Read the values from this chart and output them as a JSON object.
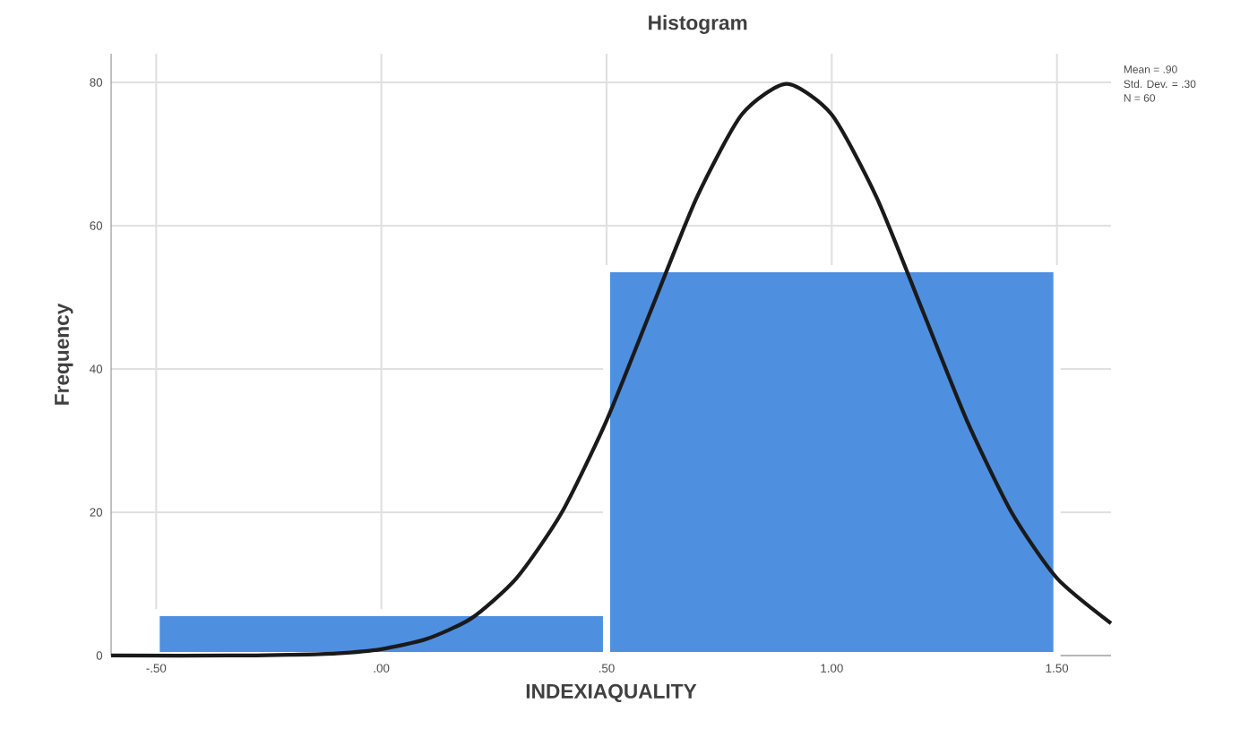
{
  "chart_data": {
    "type": "histogram",
    "title": "Histogram",
    "xlabel": "INDEXIAQUALITY",
    "ylabel": "Frequency",
    "bins": [
      -0.5,
      0.5,
      1.5
    ],
    "values": [
      6,
      54
    ],
    "color": "#4f8fe0",
    "series": [
      {
        "type": "line",
        "color": "#1a1a1a",
        "x": [
          -0.6,
          -0.3,
          -0.2,
          -0.1,
          0,
          0.1,
          0.2,
          0.3,
          0.4,
          0.5,
          0.6,
          0.7,
          0.8,
          0.9,
          1.0,
          1.1,
          1.2,
          1.3,
          1.4,
          1.5,
          1.62
        ],
        "values": [
          0,
          0,
          0.1,
          0.3,
          0.9,
          2.3,
          5.2,
          10.8,
          19.9,
          32.8,
          48.4,
          63.9,
          75.5,
          79.8,
          75.5,
          63.9,
          48.4,
          32.8,
          19.9,
          10.8,
          4.5
        ]
      }
    ],
    "xlim": [
      -0.6,
      1.62
    ],
    "ylim": [
      0,
      84
    ],
    "xticks": [
      {
        "value": -0.5,
        "label": "-.50"
      },
      {
        "value": 0,
        "label": ".00"
      },
      {
        "value": 0.5,
        "label": ".50"
      },
      {
        "value": 1.0,
        "label": "1.00"
      },
      {
        "value": 1.5,
        "label": "1.50"
      }
    ],
    "yticks": [
      0,
      20,
      40,
      60,
      80
    ],
    "grid": true,
    "annotations": [
      "Mean = .90",
      "Std. Dev. = .30",
      "N = 60"
    ]
  }
}
